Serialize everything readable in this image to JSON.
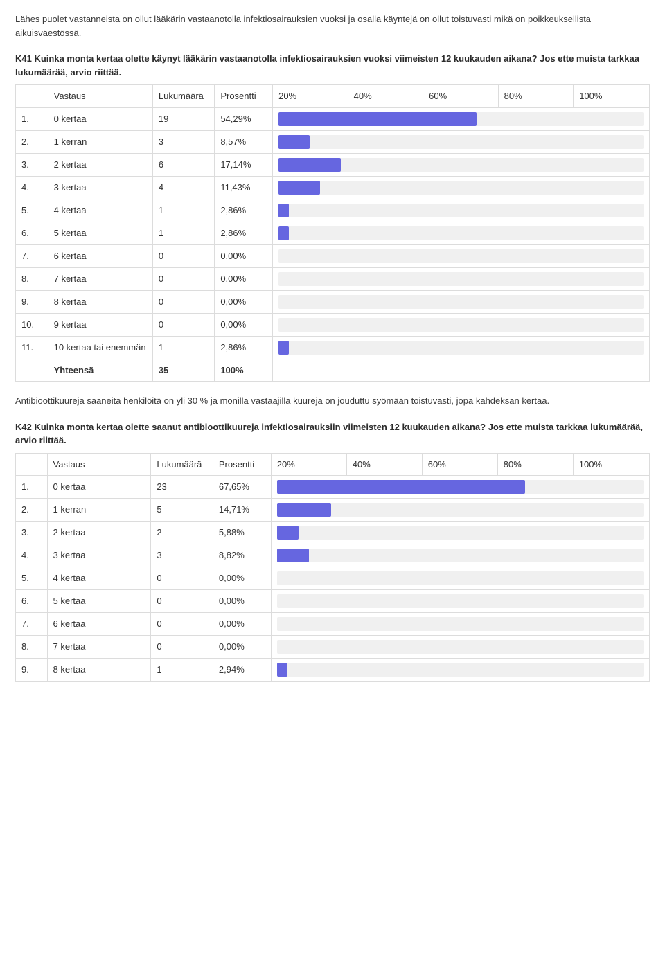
{
  "intro1": "Lähes puolet vastanneista on ollut lääkärin vastaanotolla infektiosairauksien vuoksi ja osalla käyntejä on ollut toistuvasti mikä on poikkeuksellista aikuisväestössä.",
  "q41": {
    "title": "K41 Kuinka monta kertaa olette käynyt lääkärin vastaanotolla infektiosairauksien vuoksi viimeisten 12 kuukauden aikana? Jos ette muista tarkkaa lukumäärää, arvio riittää.",
    "headers": {
      "answer": "Vastaus",
      "count": "Lukumäärä",
      "percent": "Prosentti"
    },
    "ticks": [
      "20%",
      "40%",
      "60%",
      "80%",
      "100%"
    ],
    "rows": [
      {
        "idx": "1.",
        "answer": "0 kertaa",
        "count": "19",
        "percent": "54,29%",
        "pctNum": 54.29
      },
      {
        "idx": "2.",
        "answer": "1 kerran",
        "count": "3",
        "percent": "8,57%",
        "pctNum": 8.57
      },
      {
        "idx": "3.",
        "answer": "2 kertaa",
        "count": "6",
        "percent": "17,14%",
        "pctNum": 17.14
      },
      {
        "idx": "4.",
        "answer": "3 kertaa",
        "count": "4",
        "percent": "11,43%",
        "pctNum": 11.43
      },
      {
        "idx": "5.",
        "answer": "4 kertaa",
        "count": "1",
        "percent": "2,86%",
        "pctNum": 2.86
      },
      {
        "idx": "6.",
        "answer": "5 kertaa",
        "count": "1",
        "percent": "2,86%",
        "pctNum": 2.86
      },
      {
        "idx": "7.",
        "answer": "6 kertaa",
        "count": "0",
        "percent": "0,00%",
        "pctNum": 0
      },
      {
        "idx": "8.",
        "answer": "7 kertaa",
        "count": "0",
        "percent": "0,00%",
        "pctNum": 0
      },
      {
        "idx": "9.",
        "answer": "8 kertaa",
        "count": "0",
        "percent": "0,00%",
        "pctNum": 0
      },
      {
        "idx": "10.",
        "answer": "9 kertaa",
        "count": "0",
        "percent": "0,00%",
        "pctNum": 0
      },
      {
        "idx": "11.",
        "answer": "10 kertaa tai enemmän",
        "count": "1",
        "percent": "2,86%",
        "pctNum": 2.86
      }
    ],
    "total": {
      "label": "Yhteensä",
      "count": "35",
      "percent": "100%"
    }
  },
  "intro2": "Antibioottikuureja saaneita henkilöitä on yli 30 % ja monilla vastaajilla kuureja on jouduttu syömään toistuvasti, jopa kahdeksan kertaa.",
  "q42": {
    "title": "K42 Kuinka monta kertaa olette saanut antibioottikuureja infektiosairauksiin viimeisten 12 kuukauden aikana? Jos ette muista tarkkaa lukumäärää, arvio riittää.",
    "headers": {
      "answer": "Vastaus",
      "count": "Lukumäärä",
      "percent": "Prosentti"
    },
    "ticks": [
      "20%",
      "40%",
      "60%",
      "80%",
      "100%"
    ],
    "rows": [
      {
        "idx": "1.",
        "answer": "0 kertaa",
        "count": "23",
        "percent": "67,65%",
        "pctNum": 67.65
      },
      {
        "idx": "2.",
        "answer": "1 kerran",
        "count": "5",
        "percent": "14,71%",
        "pctNum": 14.71
      },
      {
        "idx": "3.",
        "answer": "2 kertaa",
        "count": "2",
        "percent": "5,88%",
        "pctNum": 5.88
      },
      {
        "idx": "4.",
        "answer": "3 kertaa",
        "count": "3",
        "percent": "8,82%",
        "pctNum": 8.82
      },
      {
        "idx": "5.",
        "answer": "4 kertaa",
        "count": "0",
        "percent": "0,00%",
        "pctNum": 0
      },
      {
        "idx": "6.",
        "answer": "5 kertaa",
        "count": "0",
        "percent": "0,00%",
        "pctNum": 0
      },
      {
        "idx": "7.",
        "answer": "6 kertaa",
        "count": "0",
        "percent": "0,00%",
        "pctNum": 0
      },
      {
        "idx": "8.",
        "answer": "7 kertaa",
        "count": "0",
        "percent": "0,00%",
        "pctNum": 0
      },
      {
        "idx": "9.",
        "answer": "8 kertaa",
        "count": "1",
        "percent": "2,94%",
        "pctNum": 2.94
      }
    ]
  },
  "style": {
    "bar_color": "#6666e0",
    "bar_track_color": "#f0f0f0",
    "border_color": "#dcdcdc",
    "text_color": "#333333"
  }
}
